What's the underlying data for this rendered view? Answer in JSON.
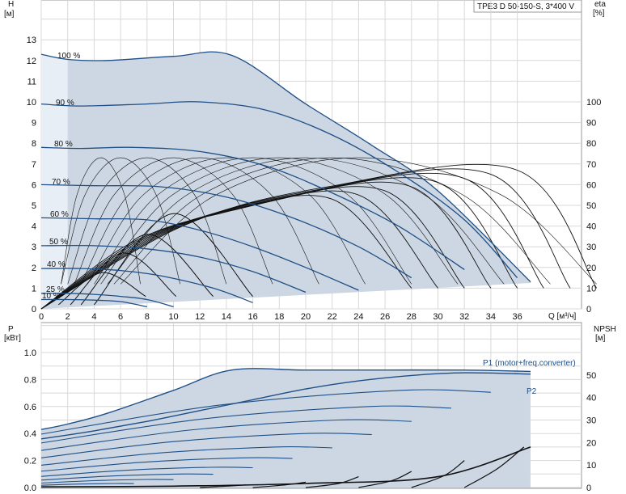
{
  "chart_data": [
    {
      "type": "line",
      "title": "TPE3 D 50-150-S, 3*400 V",
      "ylabel": "H",
      "yunit": "[м]",
      "y2label": "eta",
      "y2unit": "[%]",
      "xlabel": "Q [м³/ч]",
      "xlim": [
        0,
        40
      ],
      "ylim": [
        0,
        14
      ],
      "xticks": [
        0,
        2,
        4,
        6,
        8,
        10,
        12,
        14,
        16,
        18,
        20,
        22,
        24,
        26,
        28,
        30,
        32,
        34,
        36
      ],
      "yticks": [
        0,
        1,
        2,
        3,
        4,
        5,
        6,
        7,
        8,
        9,
        10,
        11,
        12,
        13
      ],
      "y2ticks": [
        0,
        10,
        20,
        30,
        40,
        50,
        60,
        70,
        80,
        90,
        100
      ],
      "grid": true,
      "operating_area_color": "#ccd7e3",
      "curve_color": "#1f4f86",
      "speed_curves": [
        {
          "label": "100 %",
          "x": [
            0,
            2,
            5,
            10,
            14.4,
            20,
            25,
            30,
            37
          ],
          "y": [
            12.3,
            12.05,
            12.0,
            12.2,
            12.25,
            9.9,
            7.9,
            5.7,
            1.3
          ]
        },
        {
          "label": "90 %",
          "x": [
            0,
            3,
            8,
            12,
            17,
            22,
            27,
            32,
            36
          ],
          "y": [
            9.9,
            9.8,
            9.9,
            10.0,
            9.6,
            8.4,
            6.6,
            4.3,
            1.5
          ]
        },
        {
          "label": "80 %",
          "x": [
            0,
            3,
            7,
            12,
            17,
            22,
            27,
            32
          ],
          "y": [
            7.8,
            7.75,
            7.8,
            7.6,
            6.9,
            5.6,
            4.0,
            1.9
          ]
        },
        {
          "label": "70 %",
          "x": [
            0,
            4,
            9,
            14,
            19,
            24,
            28
          ],
          "y": [
            6.0,
            5.95,
            5.9,
            5.4,
            4.4,
            3.0,
            1.5
          ]
        },
        {
          "label": "60 %",
          "x": [
            0,
            4,
            8,
            12,
            16,
            20,
            24
          ],
          "y": [
            4.4,
            4.35,
            4.3,
            3.8,
            3.0,
            2.0,
            0.9
          ]
        },
        {
          "label": "50 %",
          "x": [
            0,
            4,
            8,
            12,
            16,
            20
          ],
          "y": [
            3.05,
            3.05,
            2.9,
            2.5,
            1.8,
            0.8
          ]
        },
        {
          "label": "40 %",
          "x": [
            0,
            3,
            6,
            9,
            13,
            16
          ],
          "y": [
            1.95,
            1.95,
            1.85,
            1.6,
            1.0,
            0.3
          ]
        },
        {
          "label": "25 %",
          "x": [
            0,
            2,
            4,
            6,
            8,
            10
          ],
          "y": [
            0.75,
            0.75,
            0.7,
            0.6,
            0.45,
            0.1
          ]
        },
        {
          "label": "10 %",
          "x": [
            0,
            2,
            4,
            6,
            8
          ],
          "y": [
            0.45,
            0.45,
            0.42,
            0.35,
            0.1
          ]
        }
      ]
    },
    {
      "type": "line",
      "ylabel": "P",
      "yunit": "[кВт]",
      "y2label": "NPSH",
      "y2unit": "[м]",
      "xlim": [
        0,
        40
      ],
      "ylim": [
        0,
        1.0
      ],
      "yticks": [
        0.0,
        0.2,
        0.4,
        0.6,
        0.8,
        1.0
      ],
      "y2ticks": [
        0,
        10,
        20,
        30,
        40,
        50
      ],
      "grid": true,
      "series": [
        {
          "name": "P1 (motor+freq.converter)",
          "x": [
            0,
            2,
            5,
            10,
            14.4,
            20,
            26,
            32,
            37
          ],
          "y": [
            0.43,
            0.47,
            0.55,
            0.72,
            0.87,
            0.87,
            0.87,
            0.87,
            0.86
          ]
        },
        {
          "name": "P2",
          "x": [
            0,
            4,
            8,
            12,
            16,
            20,
            24,
            28,
            32,
            37
          ],
          "y": [
            0.36,
            0.42,
            0.49,
            0.57,
            0.65,
            0.73,
            0.79,
            0.83,
            0.85,
            0.84
          ]
        }
      ],
      "npsh_curves": [
        {
          "x": [
            12,
            14,
            15.5
          ],
          "y": [
            0.0,
            0.01,
            0.02
          ]
        },
        {
          "x": [
            16,
            18.5,
            20
          ],
          "y": [
            0.0,
            0.02,
            0.04
          ]
        },
        {
          "x": [
            20,
            22.5,
            24
          ],
          "y": [
            0.0,
            0.03,
            0.08
          ]
        },
        {
          "x": [
            24,
            26.5,
            28
          ],
          "y": [
            0.0,
            0.05,
            0.12
          ]
        },
        {
          "x": [
            28,
            30.5,
            32
          ],
          "y": [
            0.0,
            0.09,
            0.2
          ]
        },
        {
          "x": [
            32,
            34.5,
            36.5
          ],
          "y": [
            0.0,
            0.14,
            0.3
          ]
        }
      ]
    }
  ]
}
